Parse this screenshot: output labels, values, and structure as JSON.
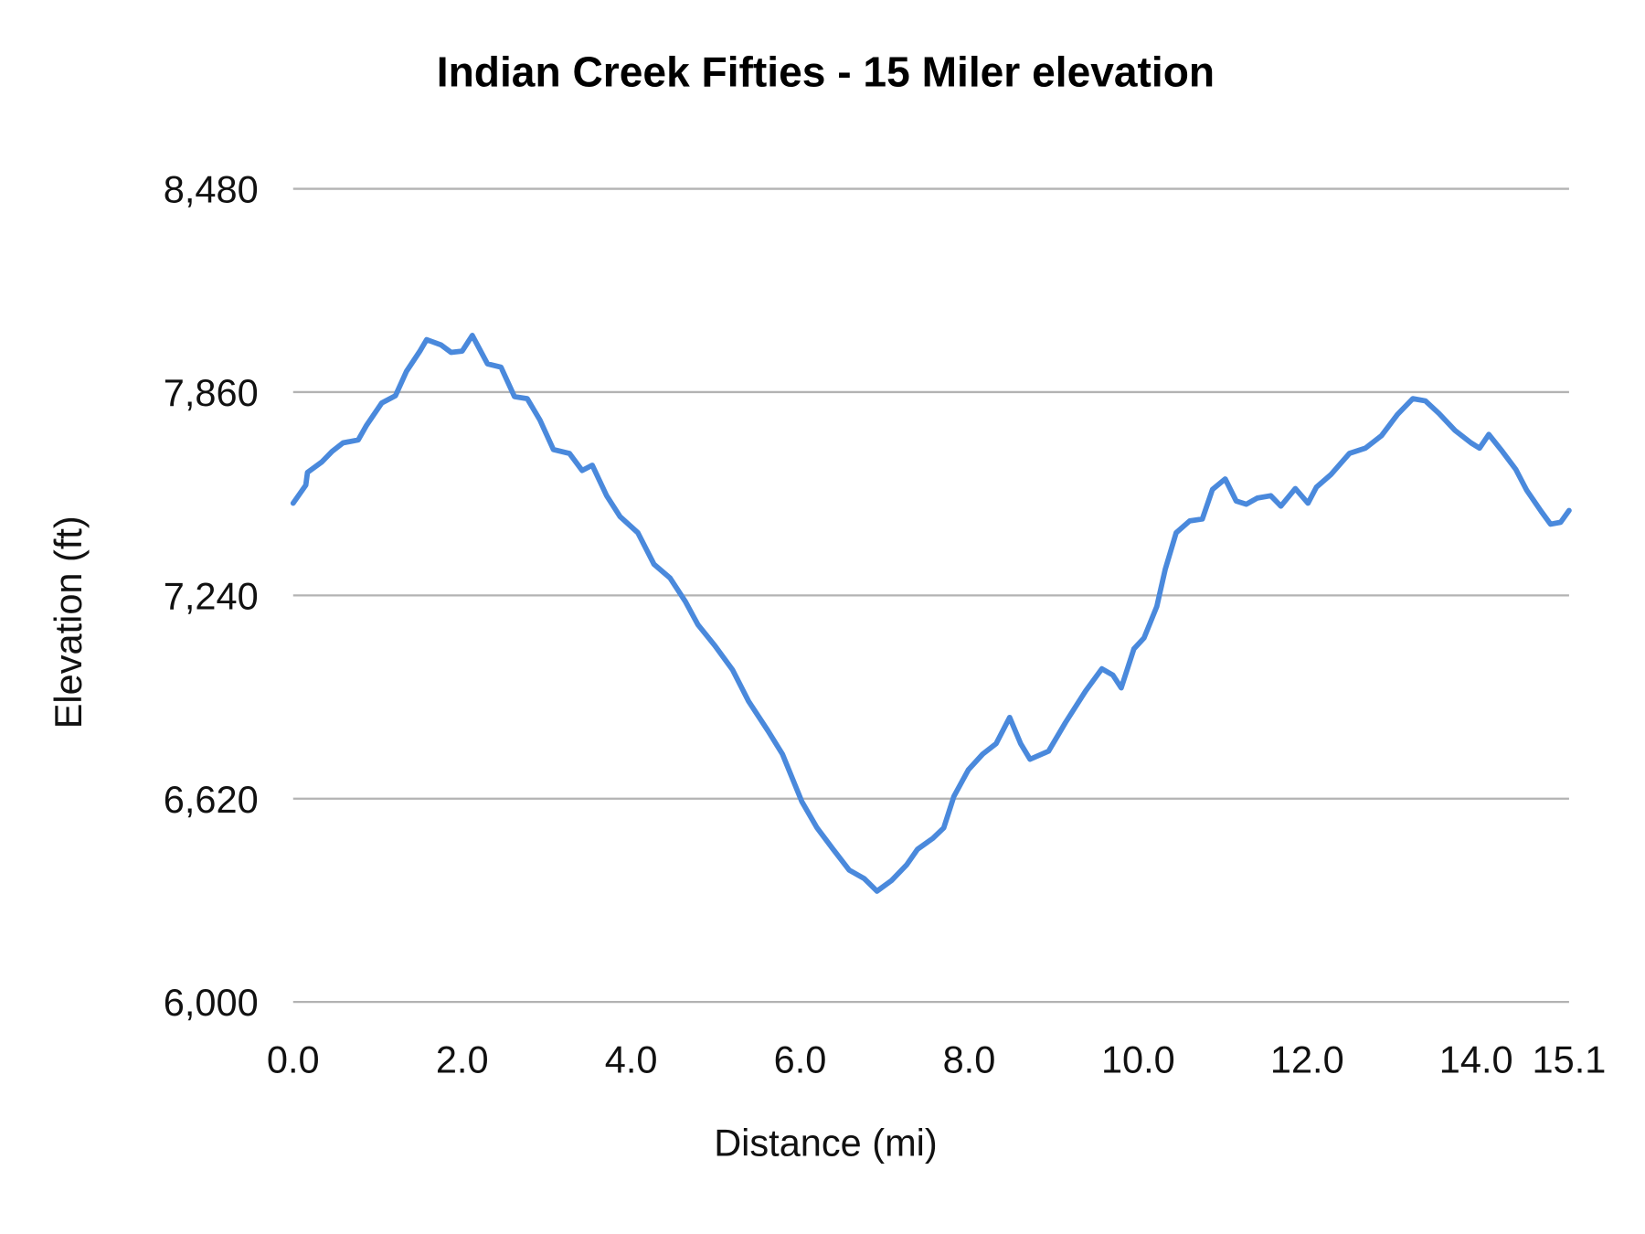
{
  "chart_data": {
    "type": "line",
    "title": "Indian Creek Fifties - 15 Miler elevation",
    "xlabel": "Distance (mi)",
    "ylabel": "Elevation (ft)",
    "xlim": [
      0,
      15.1
    ],
    "ylim": [
      6000,
      8480
    ],
    "x_ticks": [
      "0.0",
      "2.0",
      "4.0",
      "6.0",
      "8.0",
      "10.0",
      "12.0",
      "14.0",
      "15.1"
    ],
    "x_tick_values": [
      0,
      2,
      4,
      6,
      8,
      10,
      12,
      14,
      15.1
    ],
    "y_ticks": [
      "6,000",
      "6,620",
      "7,240",
      "7,860",
      "8,480"
    ],
    "y_tick_values": [
      6000,
      6620,
      7240,
      7860,
      8480
    ],
    "grid": true,
    "legend": "none",
    "series": [
      {
        "color": "#4a89dc",
        "x": [
          0,
          0.15,
          0.17,
          0.34,
          0.46,
          0.59,
          0.77,
          0.87,
          1.05,
          1.21,
          1.34,
          1.5,
          1.58,
          1.75,
          1.87,
          2.0,
          2.12,
          2.3,
          2.46,
          2.62,
          2.77,
          2.92,
          3.08,
          3.27,
          3.42,
          3.54,
          3.71,
          3.87,
          4.08,
          4.27,
          4.46,
          4.64,
          4.79,
          4.99,
          5.2,
          5.39,
          5.62,
          5.79,
          6.02,
          6.2,
          6.39,
          6.58,
          6.76,
          6.91,
          7.08,
          7.26,
          7.39,
          7.57,
          7.7,
          7.82,
          7.99,
          8.16,
          8.32,
          8.48,
          8.61,
          8.72,
          8.94,
          9.14,
          9.38,
          9.57,
          9.7,
          9.8,
          9.95,
          10.07,
          10.22,
          10.32,
          10.45,
          10.61,
          10.76,
          10.88,
          11.03,
          11.16,
          11.28,
          11.41,
          11.57,
          11.69,
          11.86,
          12.01,
          12.11,
          12.28,
          12.5,
          12.69,
          12.88,
          13.07,
          13.25,
          13.4,
          13.56,
          13.75,
          13.94,
          14.04,
          14.15,
          14.31,
          14.47,
          14.6,
          14.77,
          14.88,
          15.0,
          15.1
        ],
        "y": [
          7521,
          7576,
          7615,
          7647,
          7679,
          7705,
          7714,
          7759,
          7827,
          7849,
          7923,
          7985,
          8020,
          8004,
          7981,
          7985,
          8033,
          7946,
          7936,
          7846,
          7840,
          7775,
          7685,
          7673,
          7621,
          7637,
          7544,
          7480,
          7431,
          7335,
          7293,
          7222,
          7151,
          7087,
          7013,
          6917,
          6827,
          6756,
          6611,
          6531,
          6466,
          6402,
          6376,
          6338,
          6370,
          6418,
          6466,
          6499,
          6531,
          6627,
          6708,
          6756,
          6788,
          6868,
          6788,
          6740,
          6765,
          6852,
          6949,
          7016,
          6997,
          6958,
          7077,
          7110,
          7206,
          7319,
          7431,
          7467,
          7473,
          7563,
          7595,
          7528,
          7518,
          7537,
          7544,
          7512,
          7566,
          7521,
          7570,
          7608,
          7673,
          7689,
          7727,
          7792,
          7840,
          7833,
          7795,
          7743,
          7705,
          7689,
          7731,
          7679,
          7624,
          7560,
          7496,
          7457,
          7463,
          7499
        ]
      }
    ]
  }
}
